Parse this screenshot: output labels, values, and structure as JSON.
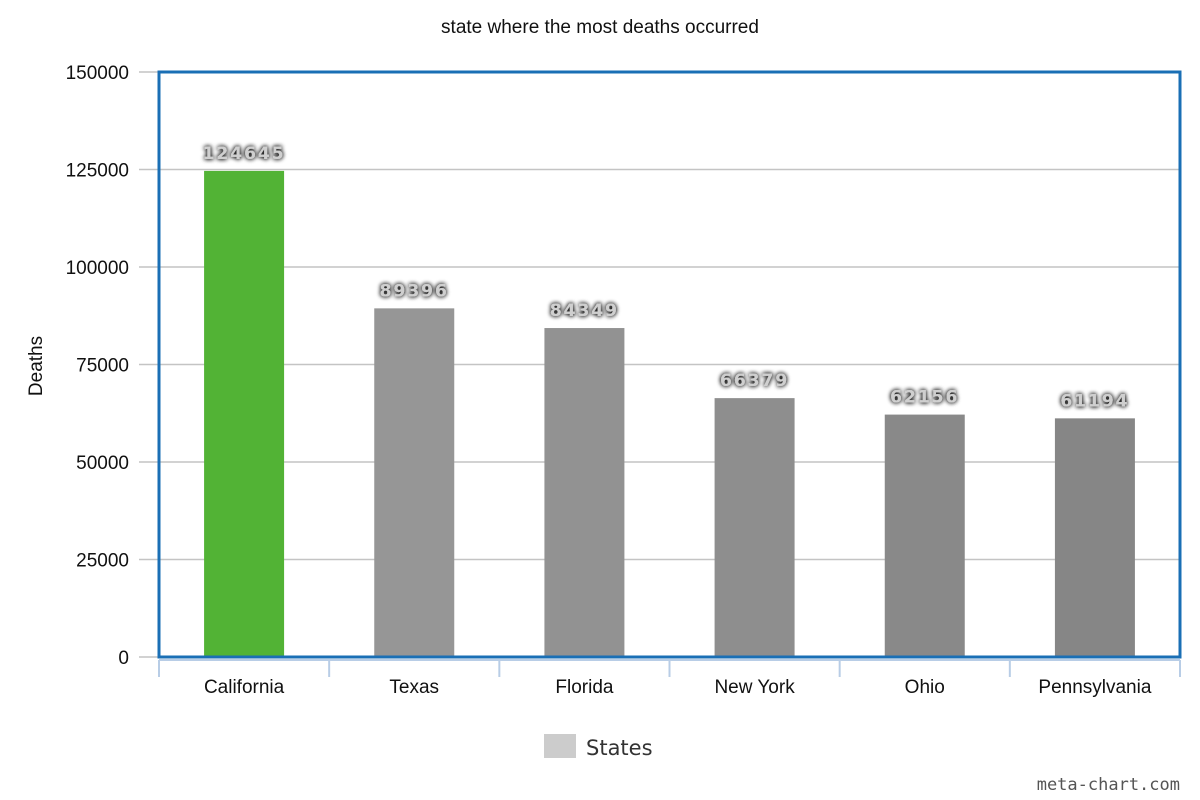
{
  "chart_data": {
    "type": "bar",
    "title": "state where the most deaths occurred",
    "xlabel": "",
    "ylabel": "Deaths",
    "categories": [
      "California",
      "Texas",
      "Florida",
      "New York",
      "Ohio",
      "Pennsylvania"
    ],
    "series": [
      {
        "name": "States",
        "values": [
          124645,
          89396,
          84349,
          66379,
          62156,
          61194
        ]
      }
    ],
    "ylim": [
      0,
      150000
    ],
    "yticks": [
      0,
      25000,
      50000,
      75000,
      100000,
      125000,
      150000
    ],
    "grid": true,
    "legend": "bottom-center",
    "colors": {
      "highlight": "#52b335",
      "bars": [
        "#52b335",
        "#969696",
        "#929292",
        "#8e8e8e",
        "#898989",
        "#868686"
      ],
      "frame": "#1a6fb5",
      "legend_swatch": "#cccccc"
    }
  },
  "credit": "meta-chart.com"
}
